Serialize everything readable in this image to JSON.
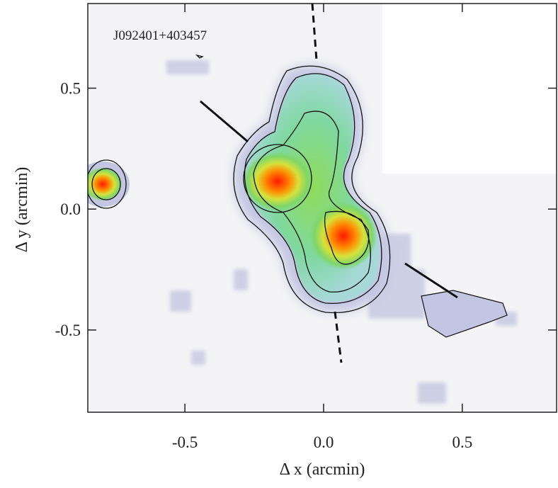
{
  "chart_data": {
    "type": "image",
    "annotation": "J092401+403457",
    "xlabel": "Δ x (arcmin)",
    "ylabel": "Δ y (arcmin)",
    "xlim": [
      -0.85,
      0.84
    ],
    "ylim": [
      -0.84,
      0.85
    ],
    "xticks": [
      -0.5,
      {
        "value": 0,
        "label": "0.0"
      },
      0.5
    ],
    "yticks": [
      -0.5,
      {
        "value": 0,
        "label": "0.0"
      },
      0.5
    ]
  }
}
